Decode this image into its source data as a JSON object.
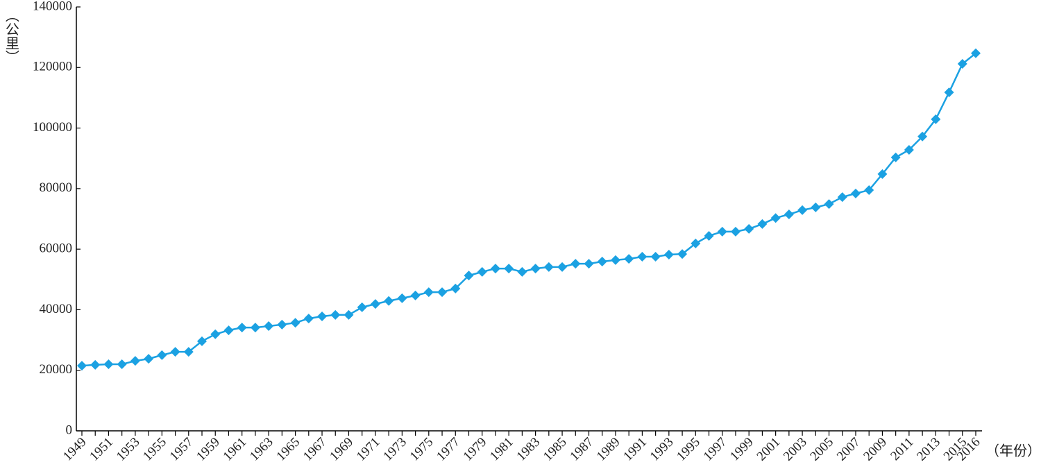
{
  "chart_data": {
    "type": "line",
    "y_label": "（公里）",
    "x_label": "（年份）",
    "categories": [
      "1949",
      null,
      "1951",
      null,
      "1953",
      null,
      "1955",
      null,
      "1957",
      null,
      "1959",
      null,
      "1961",
      null,
      "1963",
      null,
      "1965",
      null,
      "1967",
      null,
      "1969",
      null,
      "1971",
      null,
      "1973",
      null,
      "1975",
      null,
      "1977",
      null,
      "1979",
      null,
      "1981",
      null,
      "1983",
      null,
      "1985",
      null,
      "1987",
      null,
      "1989",
      null,
      "1991",
      null,
      "1993",
      null,
      "1995",
      null,
      "1997",
      null,
      "1999",
      null,
      "2001",
      null,
      "2003",
      null,
      "2005",
      null,
      "2007",
      null,
      "2009",
      null,
      "2011",
      null,
      "2013",
      null,
      "2015",
      "2016"
    ],
    "values": [
      21500,
      21800,
      22000,
      22000,
      23100,
      23800,
      25000,
      26100,
      26100,
      29600,
      31900,
      33200,
      34100,
      34100,
      34600,
      35100,
      35700,
      37100,
      37800,
      38300,
      38300,
      40800,
      41900,
      42900,
      43800,
      44700,
      45800,
      45800,
      47000,
      51300,
      52500,
      53600,
      53600,
      52500,
      53600,
      54100,
      54100,
      55200,
      55200,
      55900,
      56400,
      56800,
      57500,
      57500,
      58200,
      58400,
      61900,
      64400,
      65800,
      65800,
      66700,
      68300,
      70300,
      71500,
      72900,
      73800,
      74900,
      77200,
      78400,
      79500,
      84800,
      90300,
      92800,
      97200,
      102900,
      111800,
      121200,
      124700
    ],
    "color": "#1ba1e2",
    "ylim": [
      0,
      140000
    ],
    "yticks": [
      0,
      20000,
      40000,
      60000,
      80000,
      100000,
      120000,
      140000
    ],
    "grid": false
  }
}
